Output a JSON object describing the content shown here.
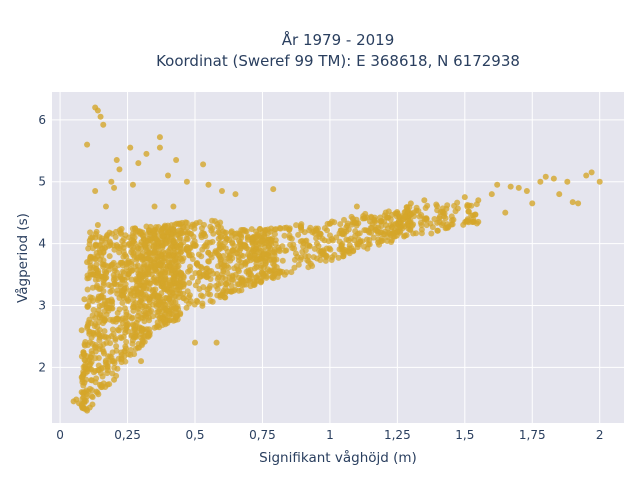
{
  "chart_data": {
    "type": "scatter",
    "title_lines": [
      "År 1979 - 2019",
      "Koordinat (Sweref 99 TM): E 368618, N 6172938"
    ],
    "xlabel": "Signifikant våghöjd (m)",
    "ylabel": "Vågperiod (s)",
    "xlim": [
      -0.03,
      2.09
    ],
    "ylim": [
      1.1,
      6.45
    ],
    "xticks": [
      0,
      0.25,
      0.5,
      0.75,
      1,
      1.25,
      1.5,
      1.75,
      2
    ],
    "xtick_labels": [
      "0",
      "0,25",
      "0,5",
      "0,75",
      "1",
      "1,25",
      "1,5",
      "1,75",
      "2"
    ],
    "yticks": [
      2,
      3,
      4,
      5,
      6
    ],
    "ytick_labels": [
      "2",
      "3",
      "4",
      "5",
      "6"
    ],
    "grid": true,
    "legend": "none",
    "marker_color": "#d4a62a",
    "background_color": "#e5e5ee",
    "grid_color": "#ffffff",
    "sample_points": [
      [
        0.05,
        1.45
      ],
      [
        0.06,
        1.48
      ],
      [
        0.07,
        1.42
      ],
      [
        0.08,
        1.38
      ],
      [
        0.09,
        1.33
      ],
      [
        0.1,
        1.3
      ],
      [
        0.11,
        1.35
      ],
      [
        0.12,
        1.4
      ],
      [
        0.08,
        1.6
      ],
      [
        0.09,
        1.75
      ],
      [
        0.09,
        2.2
      ],
      [
        0.08,
        2.6
      ],
      [
        0.09,
        3.1
      ],
      [
        0.1,
        3.7
      ],
      [
        0.11,
        4.05
      ],
      [
        0.12,
        4.1
      ],
      [
        0.14,
        4.3
      ],
      [
        0.1,
        5.6
      ],
      [
        0.13,
        6.2
      ],
      [
        0.14,
        6.15
      ],
      [
        0.15,
        6.05
      ],
      [
        0.16,
        5.92
      ],
      [
        0.17,
        4.6
      ],
      [
        0.19,
        5.0
      ],
      [
        0.21,
        5.35
      ],
      [
        0.22,
        5.2
      ],
      [
        0.26,
        5.55
      ],
      [
        0.29,
        5.3
      ],
      [
        0.32,
        5.45
      ],
      [
        0.37,
        5.55
      ],
      [
        0.37,
        5.72
      ],
      [
        0.4,
        5.1
      ],
      [
        0.43,
        5.35
      ],
      [
        0.47,
        5.0
      ],
      [
        0.53,
        5.28
      ],
      [
        0.55,
        4.95
      ],
      [
        0.6,
        4.85
      ],
      [
        0.65,
        4.8
      ],
      [
        0.79,
        4.88
      ],
      [
        0.5,
        2.4
      ],
      [
        0.58,
        2.4
      ],
      [
        0.13,
        4.85
      ],
      [
        0.2,
        4.9
      ],
      [
        0.27,
        4.95
      ],
      [
        0.35,
        4.6
      ],
      [
        0.42,
        4.6
      ],
      [
        0.2,
        1.8
      ],
      [
        0.3,
        2.1
      ],
      [
        1.1,
        4.6
      ],
      [
        1.3,
        4.65
      ],
      [
        1.35,
        4.7
      ],
      [
        1.42,
        4.5
      ],
      [
        1.5,
        4.75
      ],
      [
        1.55,
        4.7
      ],
      [
        1.6,
        4.8
      ],
      [
        1.62,
        4.95
      ],
      [
        1.67,
        4.92
      ],
      [
        1.7,
        4.9
      ],
      [
        1.73,
        4.85
      ],
      [
        1.75,
        4.65
      ],
      [
        1.78,
        5.0
      ],
      [
        1.8,
        5.08
      ],
      [
        1.83,
        5.05
      ],
      [
        1.85,
        4.8
      ],
      [
        1.88,
        5.0
      ],
      [
        1.9,
        4.67
      ],
      [
        1.92,
        4.65
      ],
      [
        1.95,
        5.1
      ],
      [
        1.97,
        5.15
      ],
      [
        2.0,
        5.0
      ],
      [
        1.55,
        4.35
      ],
      [
        1.65,
        4.5
      ]
    ]
  }
}
